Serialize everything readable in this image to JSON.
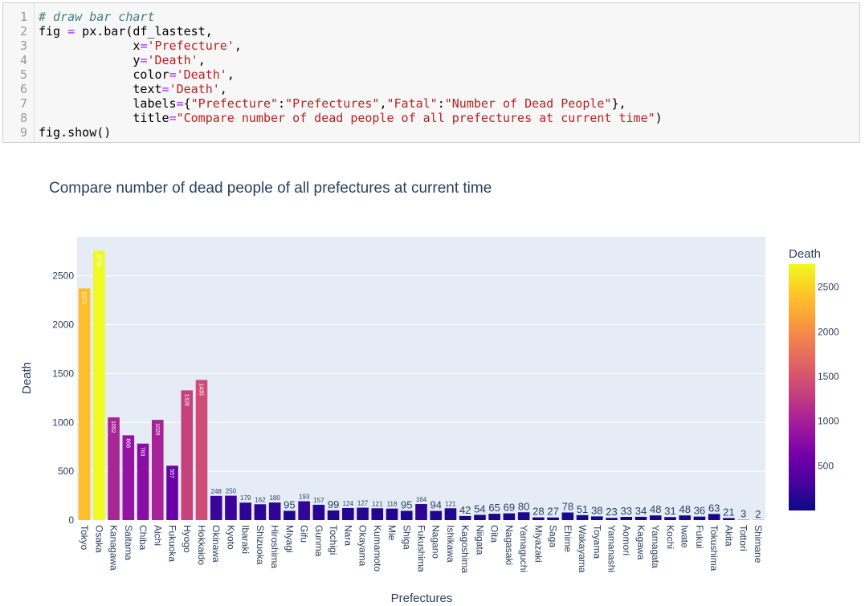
{
  "code_cell": {
    "line_numbers": [
      "1",
      "2",
      "3",
      "4",
      "5",
      "6",
      "7",
      "8",
      "9"
    ],
    "lines": [
      [
        {
          "t": "comment",
          "s": "# draw bar chart"
        }
      ],
      [
        {
          "t": "plain",
          "s": "fig "
        },
        {
          "t": "op",
          "s": "="
        },
        {
          "t": "plain",
          "s": " px.bar(df_lastest,"
        }
      ],
      [
        {
          "t": "plain",
          "s": "             x"
        },
        {
          "t": "op",
          "s": "="
        },
        {
          "t": "str",
          "s": "'Prefecture'"
        },
        {
          "t": "plain",
          "s": ","
        }
      ],
      [
        {
          "t": "plain",
          "s": "             y"
        },
        {
          "t": "op",
          "s": "="
        },
        {
          "t": "str",
          "s": "'Death'"
        },
        {
          "t": "plain",
          "s": ","
        }
      ],
      [
        {
          "t": "plain",
          "s": "             color"
        },
        {
          "t": "op",
          "s": "="
        },
        {
          "t": "str",
          "s": "'Death'"
        },
        {
          "t": "plain",
          "s": ","
        }
      ],
      [
        {
          "t": "plain",
          "s": "             text"
        },
        {
          "t": "op",
          "s": "="
        },
        {
          "t": "str",
          "s": "'Death'"
        },
        {
          "t": "plain",
          "s": ","
        }
      ],
      [
        {
          "t": "plain",
          "s": "             labels"
        },
        {
          "t": "op",
          "s": "="
        },
        {
          "t": "plain",
          "s": "{"
        },
        {
          "t": "str",
          "s": "\"Prefecture\""
        },
        {
          "t": "plain",
          "s": ":"
        },
        {
          "t": "str",
          "s": "\"Prefectures\""
        },
        {
          "t": "plain",
          "s": ","
        },
        {
          "t": "str",
          "s": "\"Fatal\""
        },
        {
          "t": "plain",
          "s": ":"
        },
        {
          "t": "str",
          "s": "\"Number of Dead People\""
        },
        {
          "t": "plain",
          "s": "},"
        }
      ],
      [
        {
          "t": "plain",
          "s": "             title"
        },
        {
          "t": "op",
          "s": "="
        },
        {
          "t": "str",
          "s": "\"Compare number of dead people of all prefectures at current time\""
        },
        {
          "t": "plain",
          "s": ")"
        }
      ],
      [
        {
          "t": "plain",
          "s": "fig.show()"
        }
      ]
    ]
  },
  "chart_data": {
    "type": "bar",
    "title": "Compare number of dead people of all prefectures at current time",
    "xlabel": "Prefectures",
    "ylabel": "Death",
    "ylim": [
      0,
      2900
    ],
    "yticks": [
      0,
      500,
      1000,
      1500,
      2000,
      2500
    ],
    "grid": true,
    "colorbar": {
      "title": "Death",
      "ticks": [
        500,
        1000,
        1500,
        2000,
        2500
      ],
      "range": [
        2,
        2756
      ]
    },
    "categories": [
      "Tokyo",
      "Osaka",
      "Kanagawa",
      "Saitama",
      "Chiba",
      "Aichi",
      "Fukuoka",
      "Hyogo",
      "Hokkaido",
      "Okinawa",
      "Kyoto",
      "Ibaraki",
      "Shizuoka",
      "Hiroshima",
      "Miyagi",
      "Gifu",
      "Gunma",
      "Tochigi",
      "Nara",
      "Okayama",
      "Kumamoto",
      "Mie",
      "Shiga",
      "Fukushima",
      "Nagano",
      "Ishikawa",
      "Kagoshima",
      "Niigata",
      "Oita",
      "Nagasaki",
      "Yamaguchi",
      "Miyazaki",
      "Saga",
      "Ehime",
      "Wakayama",
      "Toyama",
      "Yamanashi",
      "Aomori",
      "Kagawa",
      "Yamagata",
      "Kochi",
      "Iwate",
      "Fukui",
      "Tokushima",
      "Akita",
      "Tottori",
      "Shimane"
    ],
    "values": [
      2371,
      2756,
      1052,
      868,
      783,
      1026,
      557,
      1328,
      1435,
      248,
      250,
      179,
      162,
      180,
      95,
      193,
      157,
      99,
      124,
      127,
      121,
      118,
      95,
      164,
      94,
      121,
      42,
      54,
      65,
      69,
      80,
      28,
      27,
      78,
      51,
      38,
      23,
      33,
      34,
      48,
      31,
      48,
      36,
      63,
      21,
      3,
      2
    ]
  }
}
